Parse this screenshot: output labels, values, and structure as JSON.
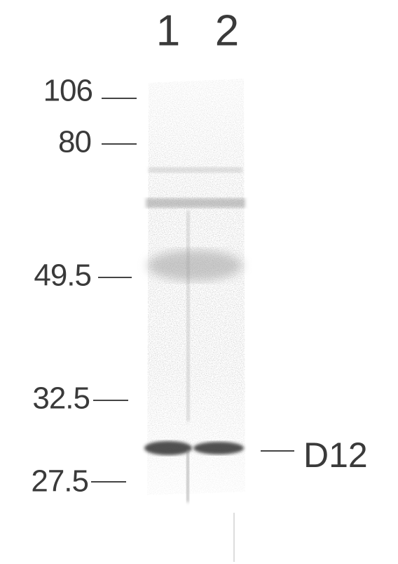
{
  "lanes": [
    "1",
    "2"
  ],
  "markers": [
    "106",
    "80",
    "49.5",
    "32.5",
    "27.5"
  ],
  "band_label": "D12"
}
